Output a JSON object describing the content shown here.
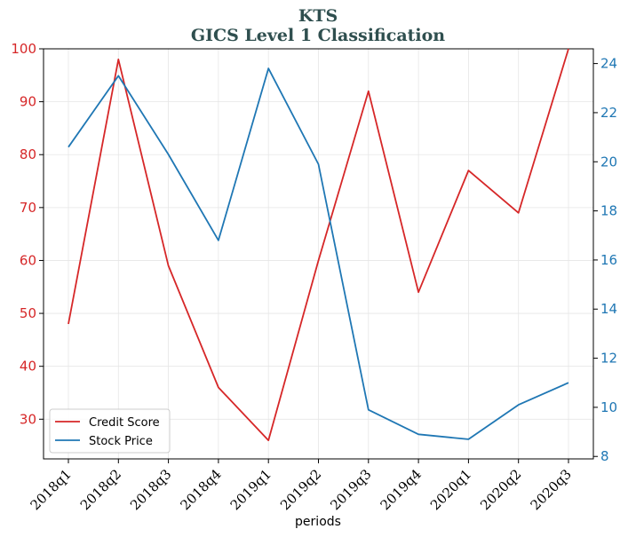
{
  "chart_data": {
    "type": "line",
    "title": "KTS",
    "subtitle": "GICS Level 1 Classification",
    "xlabel": "periods",
    "ylabel": "",
    "ylabel_right": "",
    "categories": [
      "2018q1",
      "2018q2",
      "2018q3",
      "2018q4",
      "2019q1",
      "2019q2",
      "2019q3",
      "2019q4",
      "2020q1",
      "2020q2",
      "2020q3"
    ],
    "ylim": [
      22.5,
      100
    ],
    "ylim_right": [
      7.9,
      24.6
    ],
    "yticks": [
      30,
      40,
      50,
      60,
      70,
      80,
      90,
      100
    ],
    "yticks_right": [
      8,
      10,
      12,
      14,
      16,
      18,
      20,
      22,
      24
    ],
    "grid": true,
    "legend_position": "lower-left",
    "series": [
      {
        "name": "Credit Score",
        "axis": "left",
        "color": "#d62728",
        "values": [
          48,
          98,
          59,
          36,
          26,
          60,
          92,
          54,
          77,
          69,
          100
        ]
      },
      {
        "name": "Stock Price",
        "axis": "right",
        "color": "#1f77b4",
        "values": [
          20.6,
          23.5,
          20.3,
          16.8,
          23.8,
          19.9,
          9.9,
          8.9,
          8.7,
          10.1,
          11.0
        ]
      }
    ],
    "colors": {
      "left_axis": "#d62728",
      "right_axis": "#1f77b4",
      "title": "#2f4f4f"
    }
  }
}
